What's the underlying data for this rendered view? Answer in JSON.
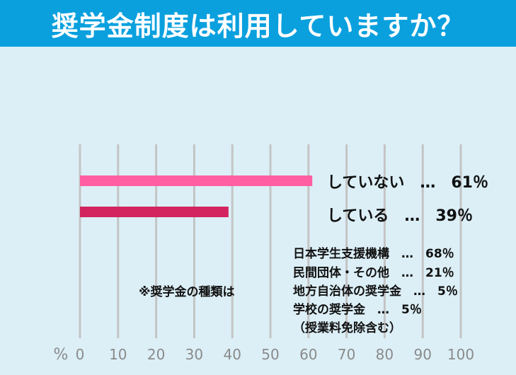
{
  "header": {
    "title": "奨学金制度は利用していますか？"
  },
  "chart_data": {
    "type": "bar",
    "orientation": "horizontal",
    "categories": [
      "していない",
      "している"
    ],
    "values": [
      61,
      39
    ],
    "unit": "％",
    "colors": [
      "#ff5fa2",
      "#d3245f"
    ],
    "xlim": [
      0,
      100
    ],
    "x_ticks": [
      0,
      10,
      20,
      30,
      40,
      50,
      60,
      70,
      80,
      90,
      100
    ],
    "x_unit_label": "%",
    "grid": true,
    "bar_labels": [
      "していない　…　61％",
      "している　…　39％"
    ]
  },
  "note": {
    "heading": "※奨学金の種類は",
    "items": [
      "日本学生支援機構　…　68％",
      "民間団体・その他　…　21％",
      "地方自治体の奨学金　…　5％",
      "学校の奨学金　…　5％"
    ],
    "footnote": "（授業料免除含む）"
  }
}
